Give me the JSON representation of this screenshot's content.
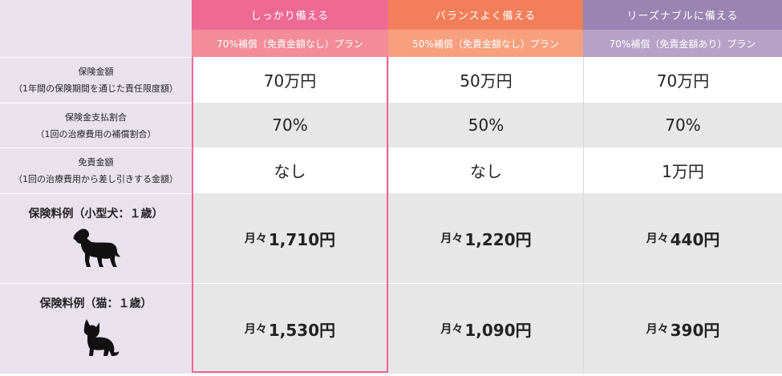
{
  "plans": [
    {
      "name": "しっかり備える",
      "sub": "70%補償（免責金額なし）プラン",
      "limit": "70万円",
      "ratio": "70%",
      "deductible": "なし",
      "dog_prefix": "月々",
      "dog_price": "1,710円",
      "cat_prefix": "月々",
      "cat_price": "1,530円"
    },
    {
      "name": "バランスよく備える",
      "sub": "50%補償（免責金額なし）プラン",
      "limit": "50万円",
      "ratio": "50%",
      "deductible": "なし",
      "dog_prefix": "月々",
      "dog_price": "1,220円",
      "cat_prefix": "月々",
      "cat_price": "1,090円"
    },
    {
      "name": "リーズナブルに備える",
      "sub": "70%補償（免責金額あり）プラン",
      "limit": "70万円",
      "ratio": "70%",
      "deductible": "1万円",
      "dog_prefix": "月々",
      "dog_price": "440円",
      "cat_prefix": "月々",
      "cat_price": "390円"
    }
  ],
  "rows": {
    "limit": {
      "title": "保険金額",
      "sub": "（1年間の保険期間を通じた責任限度額）"
    },
    "ratio": {
      "title": "保険金支払割合",
      "sub": "（1回の治療費用の補償割合）"
    },
    "deductible": {
      "title": "免責金額",
      "sub": "（1回の治療費用から差し引きする金額）"
    },
    "dog": {
      "title": "保険料例（小型犬：１歳）",
      "icon": "dog-icon"
    },
    "cat": {
      "title": "保険料例（猫：１歳）",
      "icon": "cat-icon"
    }
  },
  "colors": {
    "plan1": "#ef6995",
    "plan2": "#f27f59",
    "plan3": "#9a84b2",
    "label_bg": "#e9e2ec",
    "row_gray": "#e7e7e7"
  }
}
